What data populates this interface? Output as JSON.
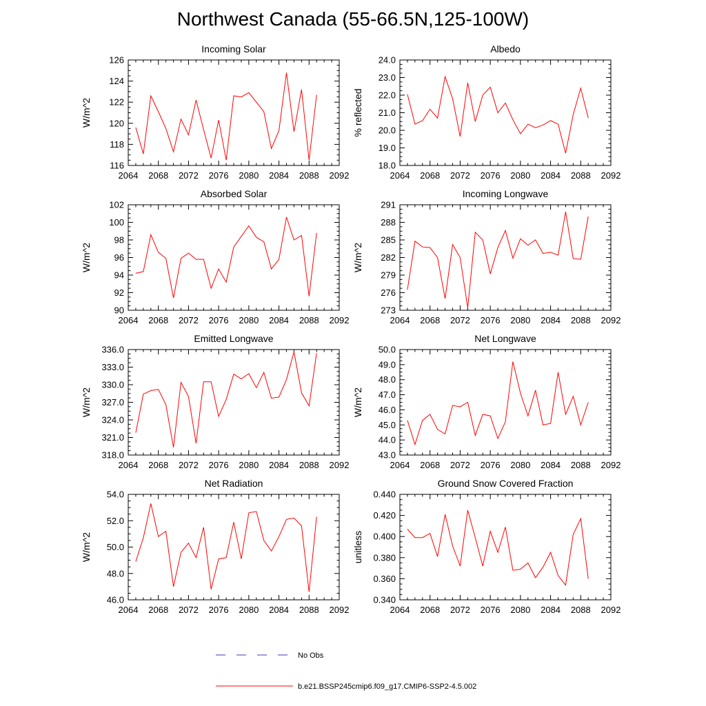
{
  "title": "Northwest Canada (55-66.5N,125-100W)",
  "legend": {
    "obs_label": "No Obs",
    "obs_color": "#3a3ab0",
    "model_label": "b.e21.BSSP245cmip6.f09_g17.CMIP6-SSP2-4.5.002",
    "model_color": "#ff0000"
  },
  "chart_data": [
    {
      "type": "line",
      "title": "Incoming Solar",
      "ylabel": "W/m^2",
      "xlim": [
        2064,
        2092
      ],
      "ylim": [
        116,
        126
      ],
      "xticks": [
        "2064",
        "2068",
        "2072",
        "2076",
        "2080",
        "2084",
        "2088",
        "2092"
      ],
      "yticks": [
        "116",
        "118",
        "120",
        "122",
        "124",
        "126"
      ],
      "x": [
        2065,
        2066,
        2067,
        2068,
        2069,
        2070,
        2071,
        2072,
        2073,
        2074,
        2075,
        2076,
        2077,
        2078,
        2079,
        2080,
        2081,
        2082,
        2083,
        2084,
        2085,
        2086,
        2087,
        2088,
        2089
      ],
      "series": [
        {
          "values": [
            119.6,
            117.1,
            122.6,
            121.1,
            119.5,
            117.3,
            120.4,
            118.9,
            122.2,
            119.4,
            116.7,
            120.3,
            116.5,
            122.6,
            122.5,
            122.9,
            122.0,
            121.1,
            117.6,
            119.3,
            124.8,
            119.2,
            123.2,
            116.5,
            122.7
          ]
        }
      ]
    },
    {
      "type": "line",
      "title": "Albedo",
      "ylabel": "% reflected",
      "xlim": [
        2064,
        2092
      ],
      "ylim": [
        18,
        24
      ],
      "xticks": [
        "2064",
        "2068",
        "2072",
        "2076",
        "2080",
        "2084",
        "2088",
        "2092"
      ],
      "yticks": [
        "18.0",
        "19.0",
        "20.0",
        "21.0",
        "22.0",
        "23.0",
        "24.0"
      ],
      "x": [
        2065,
        2066,
        2067,
        2068,
        2069,
        2070,
        2071,
        2072,
        2073,
        2074,
        2075,
        2076,
        2077,
        2078,
        2079,
        2080,
        2081,
        2082,
        2083,
        2084,
        2085,
        2086,
        2087,
        2088,
        2089
      ],
      "series": [
        {
          "values": [
            22.05,
            20.35,
            20.55,
            21.2,
            20.7,
            23.05,
            21.8,
            19.65,
            22.7,
            20.5,
            22.0,
            22.45,
            21.0,
            21.55,
            20.6,
            19.8,
            20.35,
            20.15,
            20.3,
            20.55,
            20.35,
            18.7,
            20.9,
            22.4,
            20.7
          ]
        }
      ]
    },
    {
      "type": "line",
      "title": "Absorbed Solar",
      "ylabel": "W/m^2",
      "xlim": [
        2064,
        2092
      ],
      "ylim": [
        90,
        102
      ],
      "xticks": [
        "2064",
        "2068",
        "2072",
        "2076",
        "2080",
        "2084",
        "2088",
        "2092"
      ],
      "yticks": [
        "90",
        "92",
        "94",
        "96",
        "98",
        "100",
        "102"
      ],
      "x": [
        2065,
        2066,
        2067,
        2068,
        2069,
        2070,
        2071,
        2072,
        2073,
        2074,
        2075,
        2076,
        2077,
        2078,
        2079,
        2080,
        2081,
        2082,
        2083,
        2084,
        2085,
        2086,
        2087,
        2088,
        2089
      ],
      "series": [
        {
          "values": [
            94.2,
            94.4,
            98.6,
            96.6,
            95.9,
            91.4,
            95.9,
            96.5,
            95.8,
            95.8,
            92.5,
            94.7,
            93.2,
            97.2,
            98.4,
            99.6,
            98.3,
            97.8,
            94.7,
            95.8,
            100.6,
            98.0,
            98.5,
            91.6,
            98.8
          ]
        }
      ]
    },
    {
      "type": "line",
      "title": "Incoming Longwave",
      "ylabel": "W/m^2",
      "xlim": [
        2064,
        2092
      ],
      "ylim": [
        273,
        291
      ],
      "xticks": [
        "2064",
        "2068",
        "2072",
        "2076",
        "2080",
        "2084",
        "2088",
        "2092"
      ],
      "yticks": [
        "273",
        "276",
        "279",
        "282",
        "285",
        "288",
        "291"
      ],
      "x": [
        2065,
        2066,
        2067,
        2068,
        2069,
        2070,
        2071,
        2072,
        2073,
        2074,
        2075,
        2076,
        2077,
        2078,
        2079,
        2080,
        2081,
        2082,
        2083,
        2084,
        2085,
        2086,
        2087,
        2088,
        2089
      ],
      "series": [
        {
          "values": [
            276.5,
            284.8,
            283.8,
            283.7,
            282.0,
            275.0,
            284.2,
            282.0,
            273.4,
            286.3,
            285.0,
            279.2,
            283.7,
            286.6,
            281.9,
            285.2,
            284.1,
            285.0,
            282.7,
            282.9,
            282.4,
            289.8,
            281.8,
            281.7,
            289.0
          ]
        }
      ]
    },
    {
      "type": "line",
      "title": "Emitted Longwave",
      "ylabel": "W/m^2",
      "xlim": [
        2064,
        2092
      ],
      "ylim": [
        318,
        336
      ],
      "xticks": [
        "2064",
        "2068",
        "2072",
        "2076",
        "2080",
        "2084",
        "2088",
        "2092"
      ],
      "yticks": [
        "318.0",
        "321.0",
        "324.0",
        "327.0",
        "330.0",
        "333.0",
        "336.0"
      ],
      "x": [
        2065,
        2066,
        2067,
        2068,
        2069,
        2070,
        2071,
        2072,
        2073,
        2074,
        2075,
        2076,
        2077,
        2078,
        2079,
        2080,
        2081,
        2082,
        2083,
        2084,
        2085,
        2086,
        2087,
        2088,
        2089
      ],
      "series": [
        {
          "values": [
            321.8,
            328.4,
            329.0,
            329.2,
            326.6,
            319.3,
            330.4,
            328.0,
            320.0,
            330.5,
            330.5,
            324.6,
            327.5,
            331.8,
            331.0,
            331.9,
            329.5,
            332.1,
            327.7,
            327.9,
            330.9,
            335.6,
            328.6,
            326.4,
            335.4
          ]
        }
      ]
    },
    {
      "type": "line",
      "title": "Net Longwave",
      "ylabel": "W/m^2",
      "xlim": [
        2064,
        2092
      ],
      "ylim": [
        43,
        50
      ],
      "xticks": [
        "2064",
        "2068",
        "2072",
        "2076",
        "2080",
        "2084",
        "2088",
        "2092"
      ],
      "yticks": [
        "43.0",
        "44.0",
        "45.0",
        "46.0",
        "47.0",
        "48.0",
        "49.0",
        "50.0"
      ],
      "x": [
        2065,
        2066,
        2067,
        2068,
        2069,
        2070,
        2071,
        2072,
        2073,
        2074,
        2075,
        2076,
        2077,
        2078,
        2079,
        2080,
        2081,
        2082,
        2083,
        2084,
        2085,
        2086,
        2087,
        2088,
        2089
      ],
      "series": [
        {
          "values": [
            45.3,
            43.7,
            45.3,
            45.7,
            44.7,
            44.4,
            46.3,
            46.2,
            46.5,
            44.3,
            45.7,
            45.6,
            44.1,
            45.2,
            49.2,
            47.1,
            45.6,
            47.3,
            45.0,
            45.1,
            48.5,
            45.7,
            46.9,
            45.0,
            46.5
          ]
        }
      ]
    },
    {
      "type": "line",
      "title": "Net Radiation",
      "ylabel": "W/m^2",
      "xlim": [
        2064,
        2092
      ],
      "ylim": [
        46,
        54
      ],
      "xticks": [
        "2064",
        "2068",
        "2072",
        "2076",
        "2080",
        "2084",
        "2088",
        "2092"
      ],
      "yticks": [
        "46.0",
        "48.0",
        "50.0",
        "52.0",
        "54.0"
      ],
      "x": [
        2065,
        2066,
        2067,
        2068,
        2069,
        2070,
        2071,
        2072,
        2073,
        2074,
        2075,
        2076,
        2077,
        2078,
        2079,
        2080,
        2081,
        2082,
        2083,
        2084,
        2085,
        2086,
        2087,
        2088,
        2089
      ],
      "series": [
        {
          "values": [
            48.9,
            50.7,
            53.3,
            50.8,
            51.2,
            47.0,
            49.6,
            50.3,
            49.2,
            51.5,
            46.8,
            49.1,
            49.2,
            51.9,
            49.1,
            52.6,
            52.7,
            50.5,
            49.7,
            50.8,
            52.1,
            52.2,
            51.6,
            46.6,
            52.3
          ]
        }
      ]
    },
    {
      "type": "line",
      "title": "Ground Snow Covered Fraction",
      "ylabel": "unitless",
      "xlim": [
        2064,
        2092
      ],
      "ylim": [
        0.34,
        0.44
      ],
      "xticks": [
        "2064",
        "2068",
        "2072",
        "2076",
        "2080",
        "2084",
        "2088",
        "2092"
      ],
      "yticks": [
        "0.340",
        "0.360",
        "0.380",
        "0.400",
        "0.420",
        "0.440"
      ],
      "x": [
        2065,
        2066,
        2067,
        2068,
        2069,
        2070,
        2071,
        2072,
        2073,
        2074,
        2075,
        2076,
        2077,
        2078,
        2079,
        2080,
        2081,
        2082,
        2083,
        2084,
        2085,
        2086,
        2087,
        2088,
        2089
      ],
      "series": [
        {
          "values": [
            0.407,
            0.399,
            0.399,
            0.403,
            0.381,
            0.421,
            0.391,
            0.372,
            0.425,
            0.399,
            0.372,
            0.405,
            0.385,
            0.409,
            0.368,
            0.369,
            0.375,
            0.361,
            0.371,
            0.385,
            0.363,
            0.354,
            0.402,
            0.417,
            0.36
          ]
        }
      ]
    }
  ]
}
